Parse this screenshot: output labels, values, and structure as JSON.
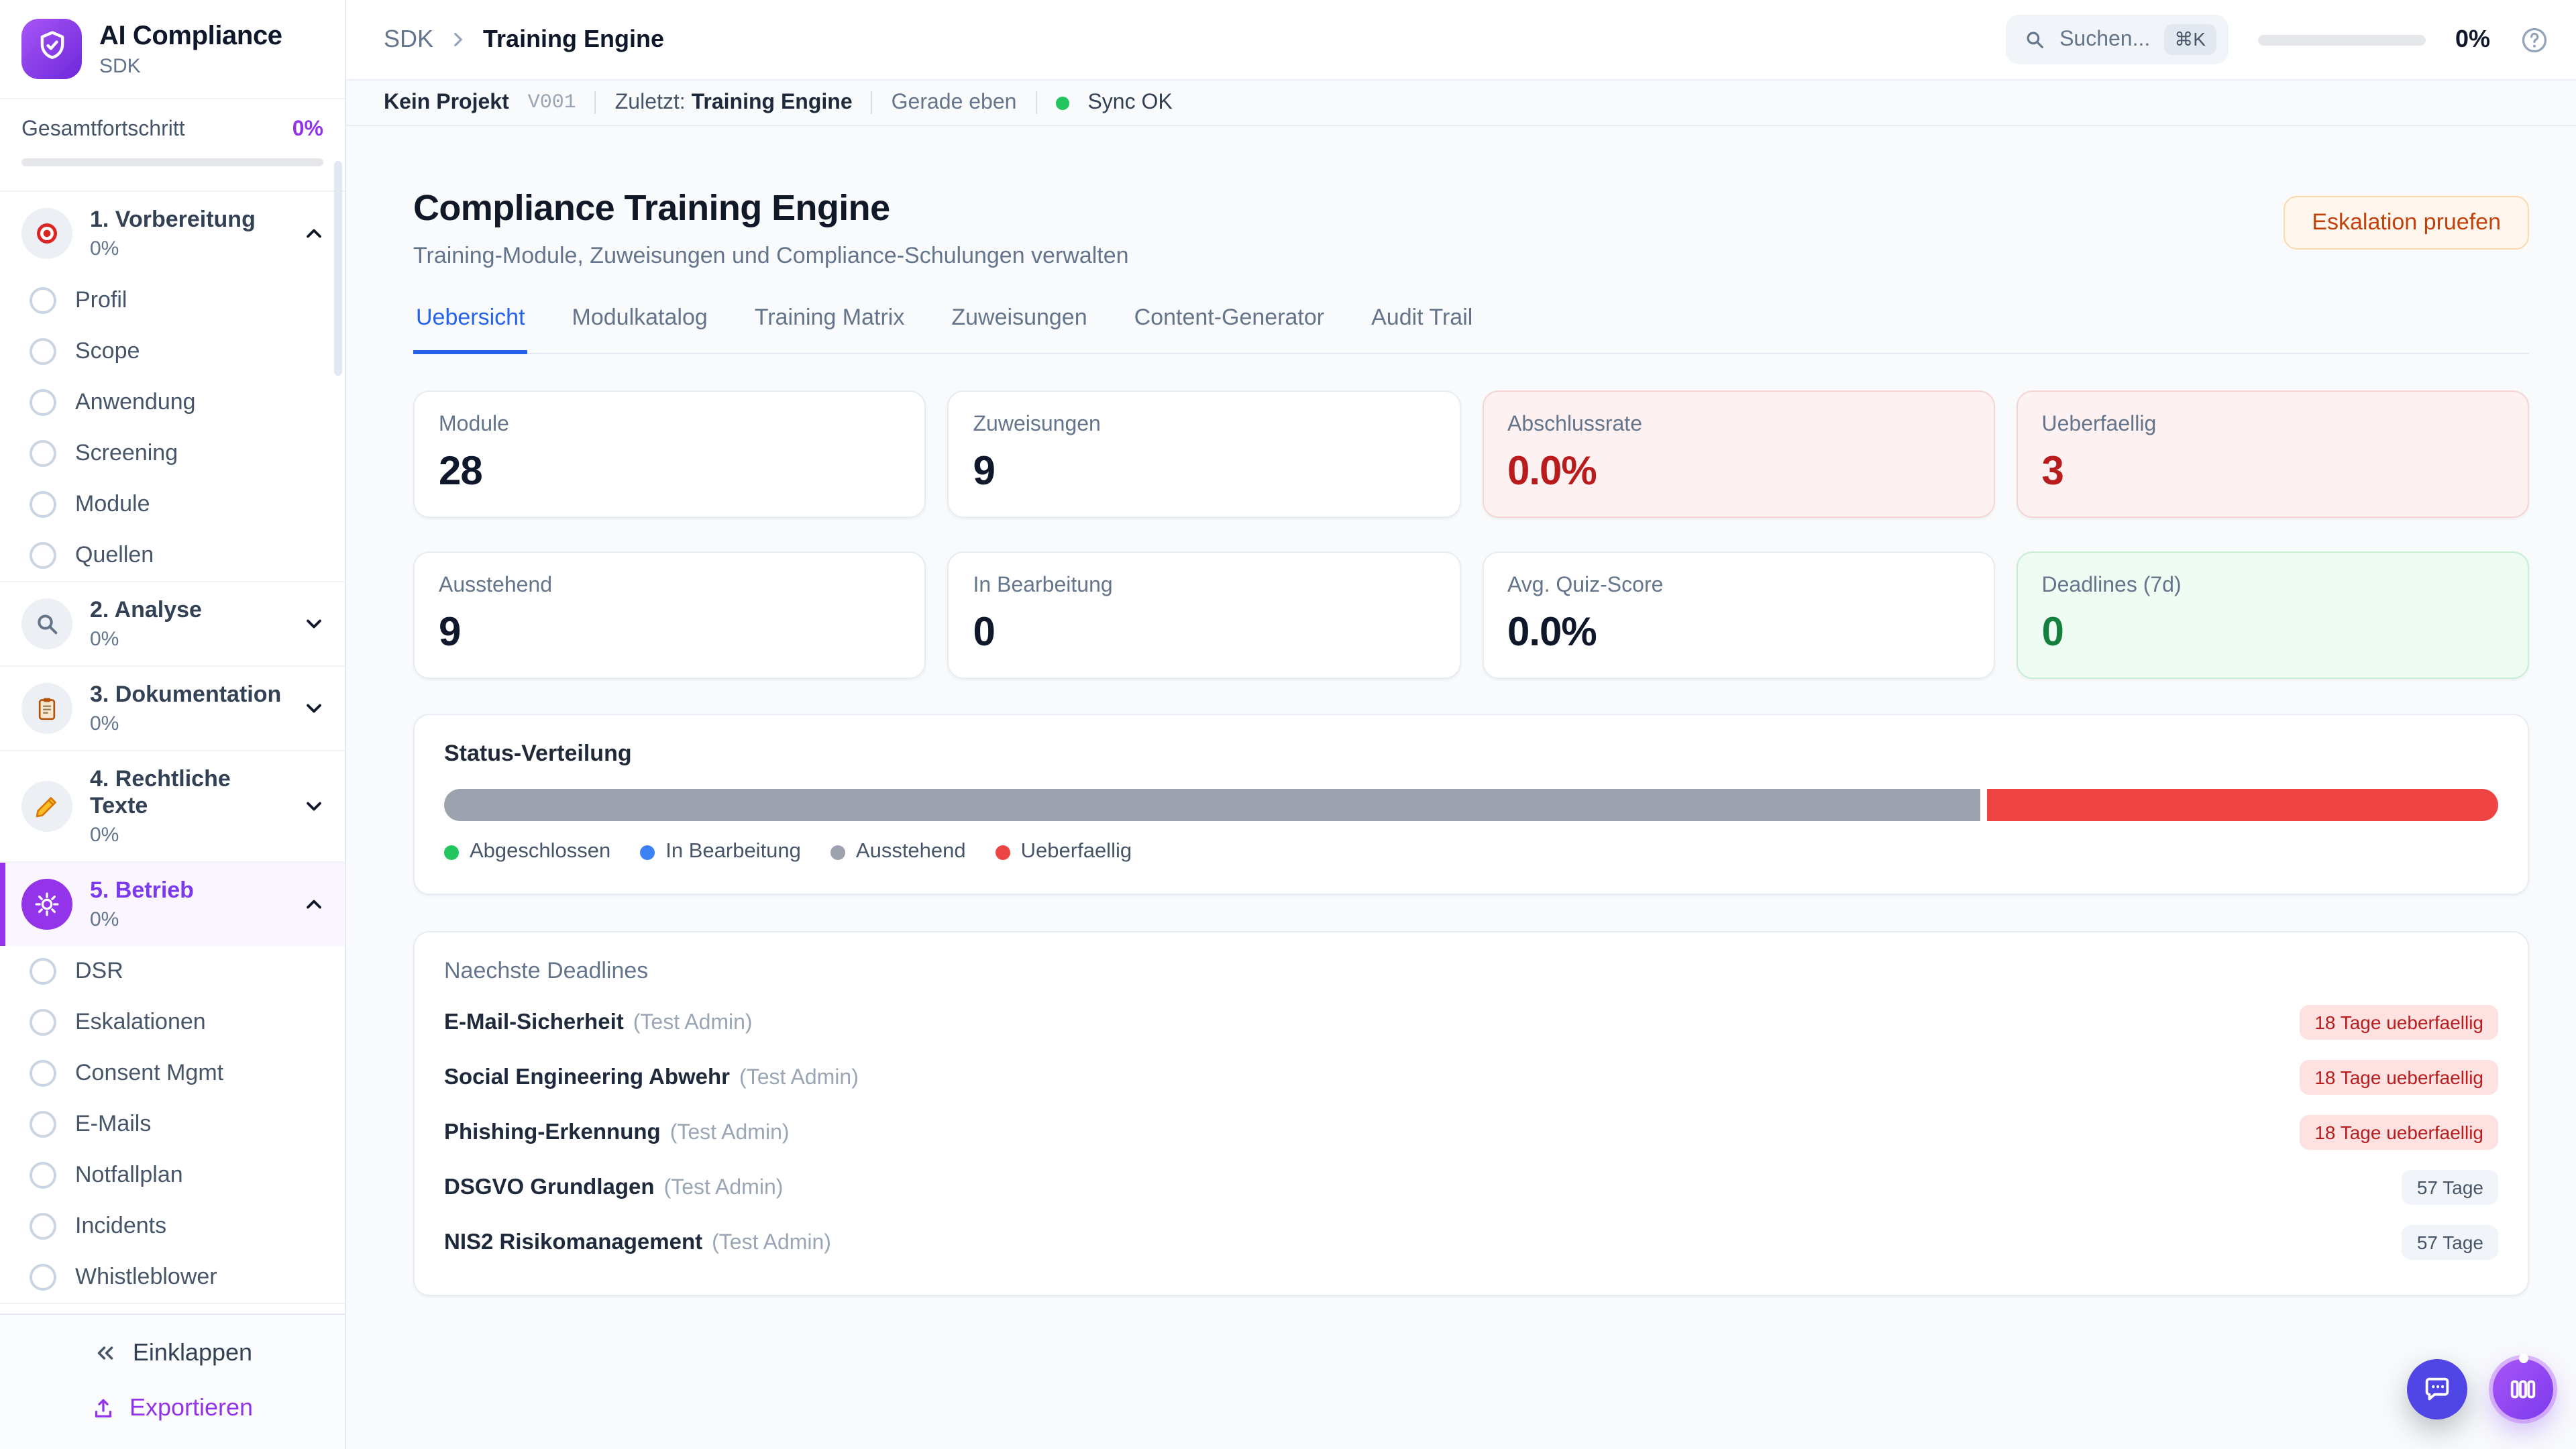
{
  "app": {
    "name": "AI Compliance",
    "subtitle": "SDK",
    "accent_color": "#9333ea"
  },
  "sidebar": {
    "progress_label": "Gesamtfortschritt",
    "progress_value": "0%",
    "sections": [
      {
        "icon": "target-icon",
        "label": "1. Vorbereitung",
        "percent": "0%",
        "expanded": true,
        "active": false,
        "items": [
          "Profil",
          "Scope",
          "Anwendung",
          "Screening",
          "Module",
          "Quellen"
        ]
      },
      {
        "icon": "magnifier-icon",
        "label": "2. Analyse",
        "percent": "0%",
        "expanded": false,
        "active": false,
        "items": []
      },
      {
        "icon": "clipboard-icon",
        "label": "3. Dokumentation",
        "percent": "0%",
        "expanded": false,
        "active": false,
        "items": []
      },
      {
        "icon": "memo-icon",
        "label": "4. Rechtliche Texte",
        "percent": "0%",
        "expanded": false,
        "active": false,
        "items": []
      },
      {
        "icon": "gear-icon",
        "label": "5. Betrieb",
        "percent": "0%",
        "expanded": true,
        "active": true,
        "items": [
          "DSR",
          "Eskalationen",
          "Consent Mgmt",
          "E-Mails",
          "Notfallplan",
          "Incidents",
          "Whistleblower"
        ]
      }
    ],
    "collapse_label": "Einklappen",
    "export_label": "Exportieren"
  },
  "header": {
    "breadcrumb": [
      "SDK",
      "Training Engine"
    ],
    "search_placeholder": "Suchen...",
    "search_shortcut": "⌘K",
    "progress_value": "0%",
    "statusbar": {
      "project": "Kein Projekt",
      "version": "V001",
      "zuletzt_label": "Zuletzt:",
      "zuletzt_value": "Training Engine",
      "time": "Gerade eben",
      "sync": "Sync OK",
      "sync_color": "#22c55e"
    }
  },
  "main": {
    "title": "Compliance Training Engine",
    "subtitle": "Training-Module, Zuweisungen und Compliance-Schulungen verwalten",
    "action_button": "Eskalation pruefen",
    "tabs": [
      {
        "label": "Uebersicht",
        "active": true
      },
      {
        "label": "Modulkatalog",
        "active": false
      },
      {
        "label": "Training Matrix",
        "active": false
      },
      {
        "label": "Zuweisungen",
        "active": false
      },
      {
        "label": "Content-Generator",
        "active": false
      },
      {
        "label": "Audit Trail",
        "active": false
      }
    ],
    "stats": [
      {
        "label": "Module",
        "value": "28",
        "variant": "default"
      },
      {
        "label": "Zuweisungen",
        "value": "9",
        "variant": "default"
      },
      {
        "label": "Abschlussrate",
        "value": "0.0%",
        "variant": "danger"
      },
      {
        "label": "Ueberfaellig",
        "value": "3",
        "variant": "danger"
      },
      {
        "label": "Ausstehend",
        "value": "9",
        "variant": "default"
      },
      {
        "label": "In Bearbeitung",
        "value": "0",
        "variant": "default"
      },
      {
        "label": "Avg. Quiz-Score",
        "value": "0.0%",
        "variant": "default"
      },
      {
        "label": "Deadlines (7d)",
        "value": "0",
        "variant": "success"
      }
    ],
    "status_distribution": {
      "title": "Status-Verteilung",
      "segments": [
        {
          "label": "Abgeschlossen",
          "color": "#22c55e",
          "value": 0
        },
        {
          "label": "In Bearbeitung",
          "color": "#3b82f6",
          "value": 0
        },
        {
          "label": "Ausstehend",
          "color": "#9ca3af",
          "value": 9
        },
        {
          "label": "Ueberfaellig",
          "color": "#ef4444",
          "value": 3
        }
      ]
    },
    "deadlines": {
      "title": "Naechste Deadlines",
      "items": [
        {
          "module": "E-Mail-Sicherheit",
          "assignee": "(Test Admin)",
          "due": "18 Tage ueberfaellig",
          "overdue": true
        },
        {
          "module": "Social Engineering Abwehr",
          "assignee": "(Test Admin)",
          "due": "18 Tage ueberfaellig",
          "overdue": true
        },
        {
          "module": "Phishing-Erkennung",
          "assignee": "(Test Admin)",
          "due": "18 Tage ueberfaellig",
          "overdue": true
        },
        {
          "module": "DSGVO Grundlagen",
          "assignee": "(Test Admin)",
          "due": "57 Tage",
          "overdue": false
        },
        {
          "module": "NIS2 Risikomanagement",
          "assignee": "(Test Admin)",
          "due": "57 Tage",
          "overdue": false
        }
      ]
    }
  }
}
